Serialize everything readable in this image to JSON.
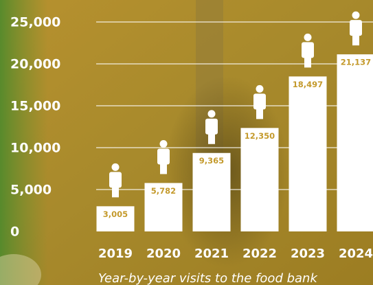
{
  "chart_data": {
    "type": "bar",
    "caption": "Year-by-year visits to the food bank",
    "categories": [
      "2019",
      "2020",
      "2021",
      "2022",
      "2023",
      "2024"
    ],
    "values": [
      3005,
      5782,
      9365,
      12350,
      18497,
      21137
    ],
    "value_labels": [
      "3,005",
      "5,782",
      "9,365",
      "12,350",
      "18,497",
      "21,137"
    ],
    "color": "#ffffff",
    "ylim": [
      0,
      25000
    ],
    "yticks": [
      0,
      {
        "value": 5000,
        "label": "5,000"
      },
      {
        "value": 10000,
        "label": "10,000"
      },
      {
        "value": 15000,
        "label": "15,000"
      },
      {
        "value": 20000,
        "label": "20,000"
      },
      {
        "value": 25000,
        "label": "25,000"
      }
    ],
    "grid": true
  }
}
